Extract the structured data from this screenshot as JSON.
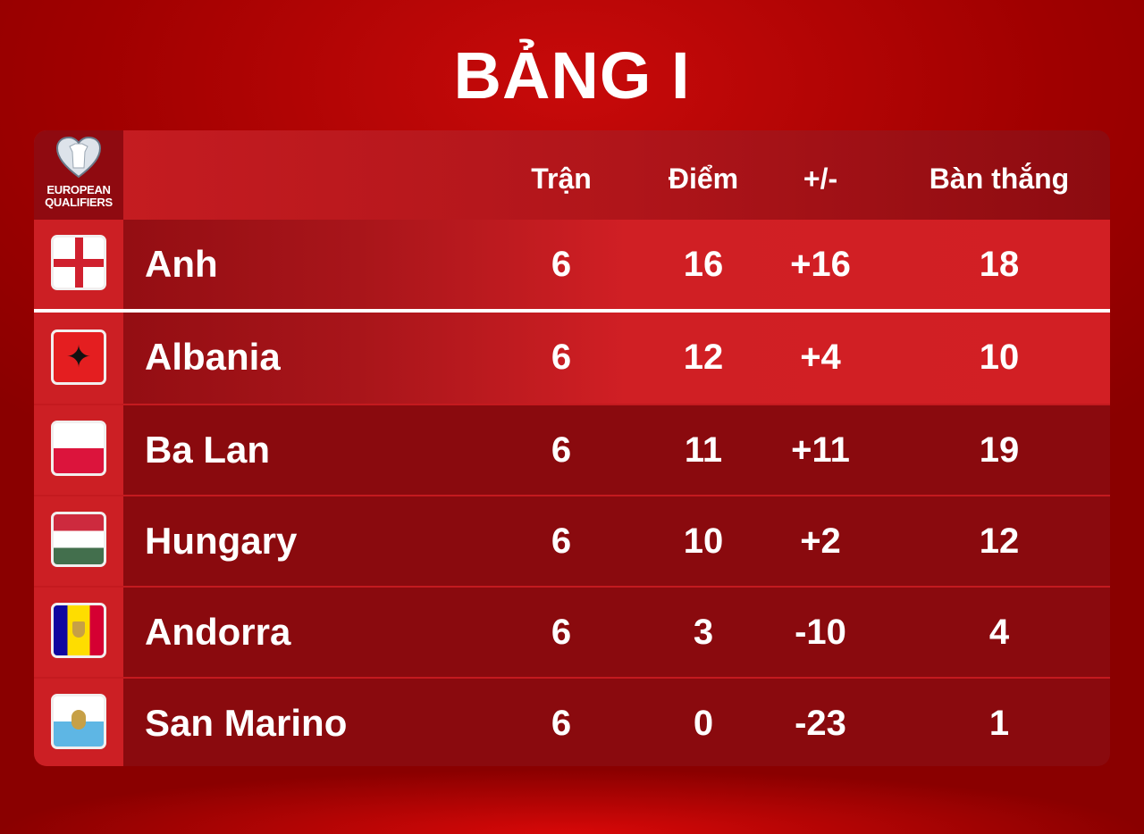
{
  "title": "BẢNG I",
  "logo": {
    "line1": "EUROPEAN",
    "line2": "QUALIFIERS"
  },
  "columns": [
    "Trận",
    "Điểm",
    "+/-",
    "Bàn thắng"
  ],
  "rows": [
    {
      "team": "Anh",
      "flag": "england-flag",
      "played": "6",
      "points": "16",
      "diff": "+16",
      "goals": "18"
    },
    {
      "team": "Albania",
      "flag": "albania-flag",
      "played": "6",
      "points": "12",
      "diff": "+4",
      "goals": "10"
    },
    {
      "team": "Ba Lan",
      "flag": "poland-flag",
      "played": "6",
      "points": "11",
      "diff": "+11",
      "goals": "19"
    },
    {
      "team": "Hungary",
      "flag": "hungary-flag",
      "played": "6",
      "points": "10",
      "diff": "+2",
      "goals": "12"
    },
    {
      "team": "Andorra",
      "flag": "andorra-flag",
      "played": "6",
      "points": "3",
      "diff": "-10",
      "goals": "4"
    },
    {
      "team": "San Marino",
      "flag": "san-marino-flag",
      "played": "6",
      "points": "0",
      "diff": "-23",
      "goals": "1"
    }
  ]
}
